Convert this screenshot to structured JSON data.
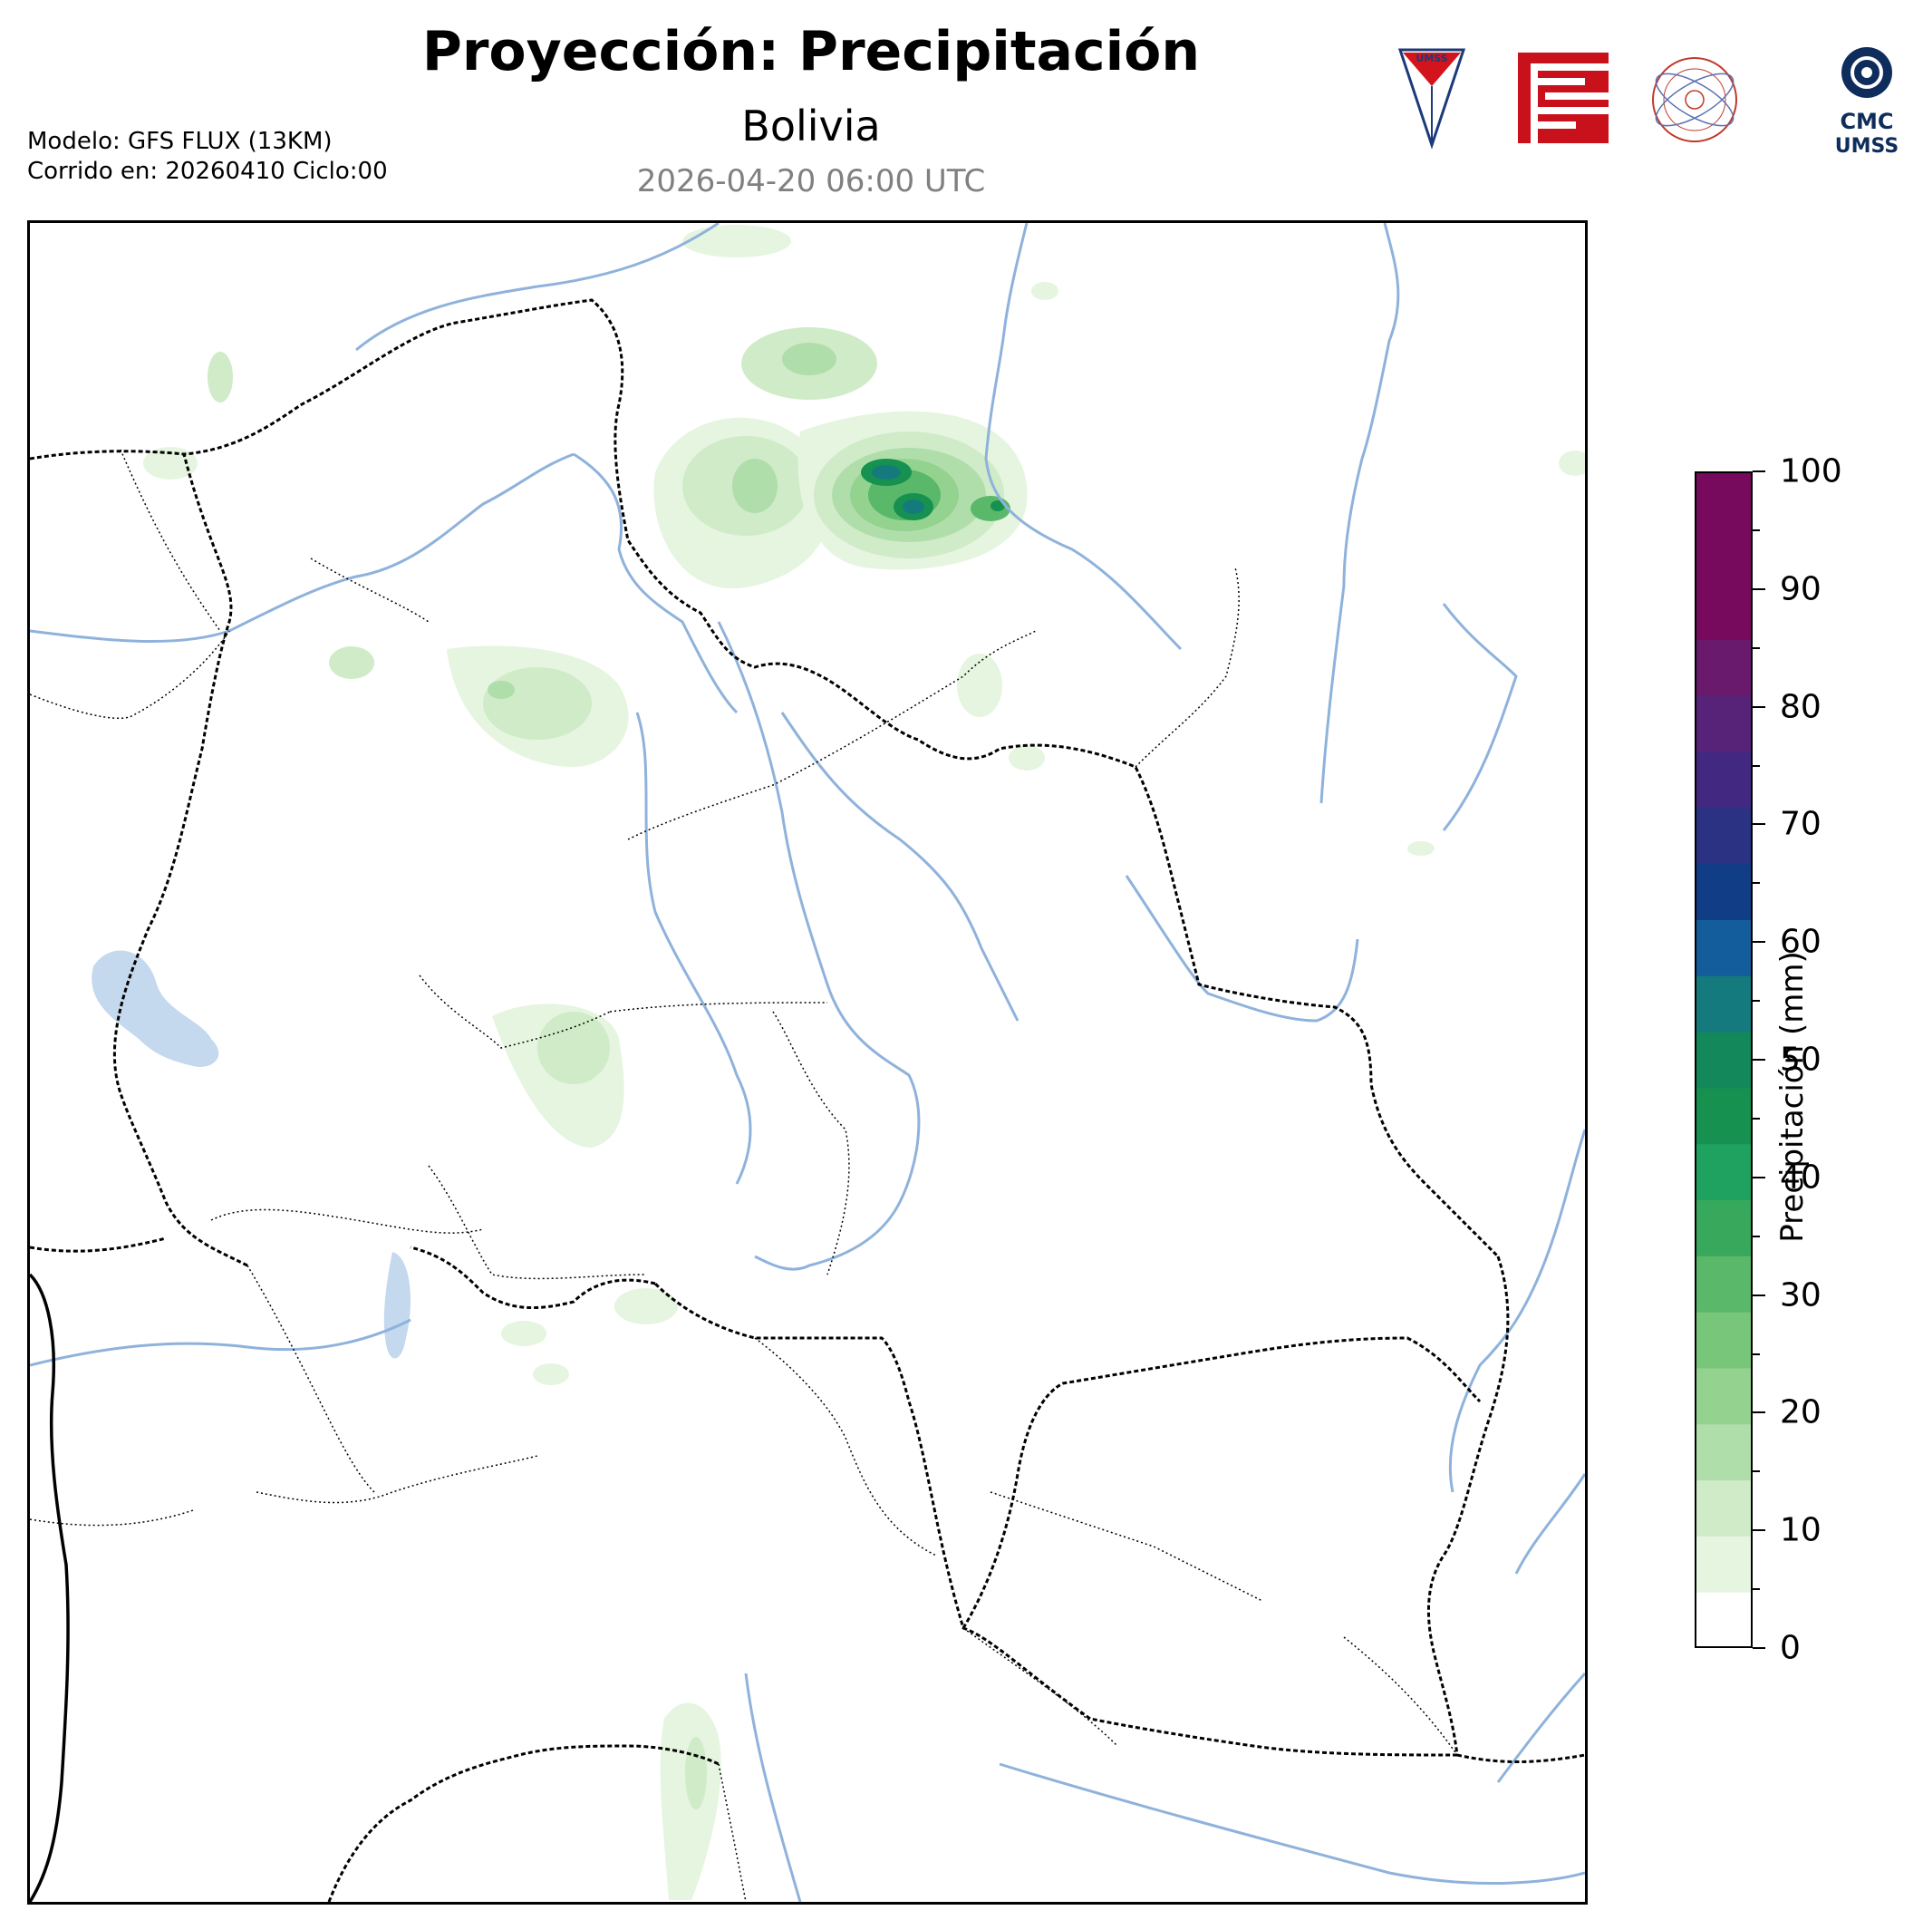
{
  "header": {
    "title": "Proyección: Precipitación",
    "subtitle": "Bolivia",
    "datetime": "2026-04-20 06:00 UTC",
    "model_line": "Modelo: GFS FLUX (13KM)",
    "run_line": "Corrido en: 20260410 Ciclo:00"
  },
  "logos": {
    "umss_text": "UMSS",
    "cmc_line1": "CMC",
    "cmc_line2": "UMSS"
  },
  "colorbar": {
    "label": "Precipitación (mm)",
    "min": 0,
    "max": 100,
    "ticks": [
      0,
      10,
      20,
      30,
      40,
      50,
      60,
      70,
      80,
      90,
      100
    ],
    "tick_labels": [
      "0",
      "10",
      "20",
      "30",
      "40",
      "50",
      "60",
      "70",
      "80",
      "90",
      "100"
    ],
    "colors": [
      "#ffffff",
      "#e5f5e0",
      "#d0ebc8",
      "#b0deaa",
      "#94d290",
      "#78c679",
      "#5ab86a",
      "#38a95c",
      "#1fa25f",
      "#16914f",
      "#13885a",
      "#157a7d",
      "#145d9c",
      "#113d86",
      "#2b3284",
      "#432882",
      "#572379",
      "#6a1a6c",
      "#780a5e"
    ]
  },
  "colors": {
    "river": "#8fb2dc",
    "lake": "#c4d8ee",
    "border": "#000000"
  }
}
